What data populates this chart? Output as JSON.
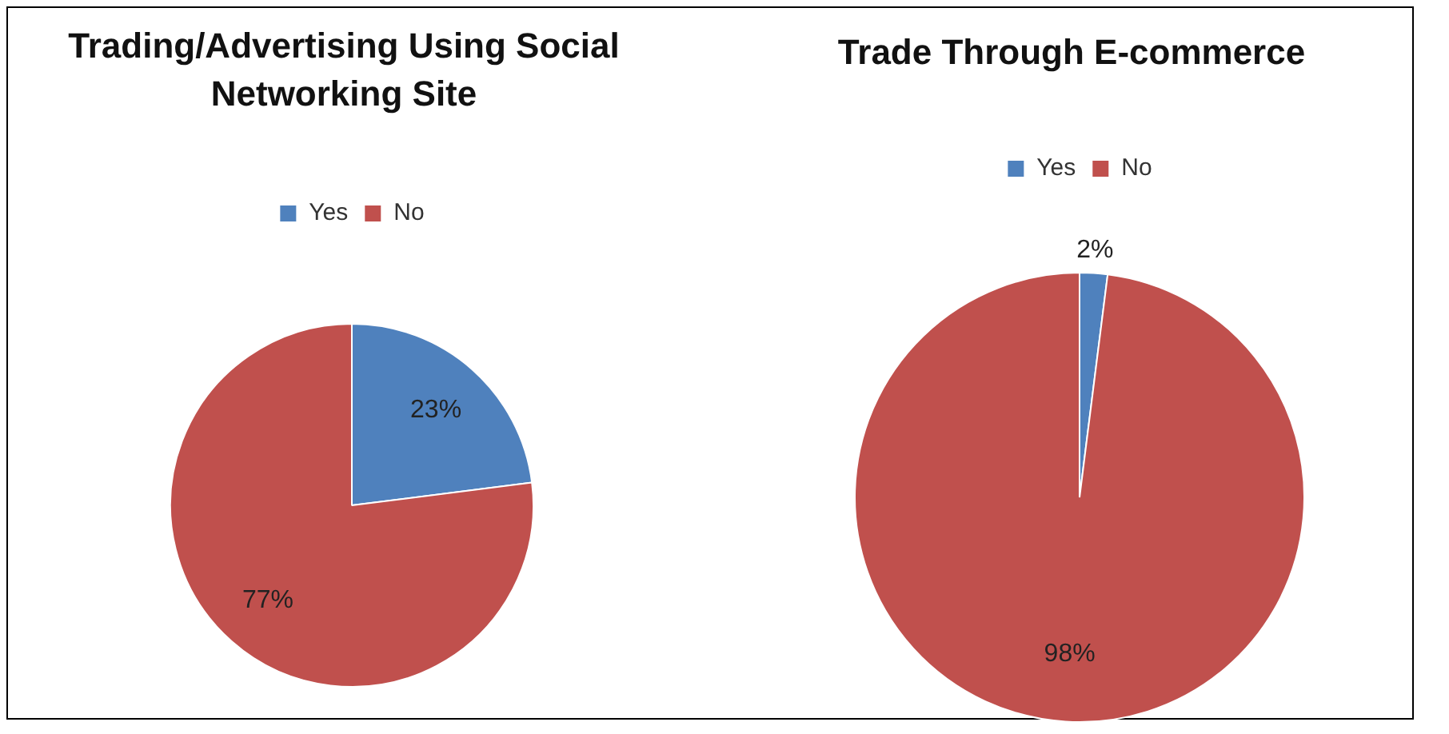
{
  "chart_data": [
    {
      "type": "pie",
      "title": "Trading/Advertising Using Social Networking Site",
      "categories": [
        "Yes",
        "No"
      ],
      "values": [
        23,
        77
      ],
      "value_labels": [
        "23%",
        "77%"
      ],
      "colors": [
        "#4f81bd",
        "#c0504d"
      ],
      "legend": "top"
    },
    {
      "type": "pie",
      "title": "Trade Through E-commerce",
      "categories": [
        "Yes",
        "No"
      ],
      "values": [
        2,
        98
      ],
      "value_labels": [
        "2%",
        "98%"
      ],
      "colors": [
        "#4f81bd",
        "#c0504d"
      ],
      "legend": "top"
    }
  ]
}
